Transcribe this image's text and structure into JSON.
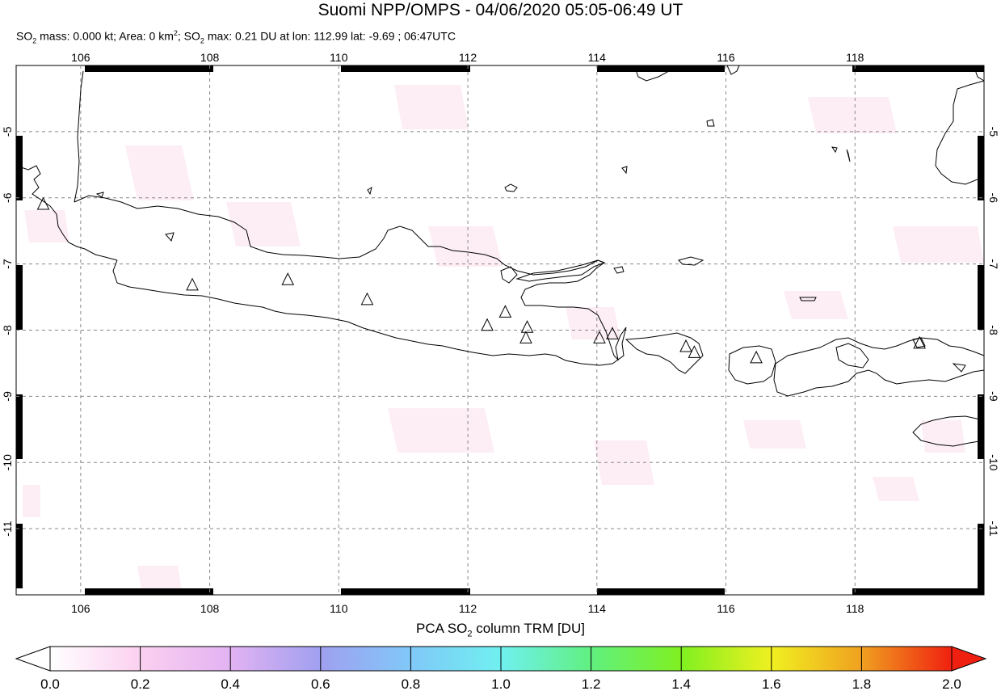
{
  "header": {
    "title": "Suomi NPP/OMPS - 04/06/2020 05:05-06:49 UT",
    "so2_mass_label": "SO",
    "so2_mass_text": " mass: 0.000 kt; Area: 0 km",
    "area_suffix": "; SO",
    "so2_max_text": " max: 0.21 DU at lon: 112.99 lat: -9.69 ; 06:47UTC",
    "sub2": "2",
    "sup2": "2"
  },
  "map": {
    "lon_labels": [
      "106",
      "108",
      "110",
      "112",
      "114",
      "116",
      "118"
    ],
    "lat_labels": [
      "-5",
      "-6",
      "-7",
      "-8",
      "-9",
      "-10",
      "-11"
    ],
    "lon_range": [
      105,
      120
    ],
    "lat_range": [
      -12,
      -4
    ],
    "grid": true,
    "volcano_icon": "triangle-icon",
    "volcanoes": [
      {
        "lon": 105.42,
        "lat": -6.1
      },
      {
        "lon": 107.73,
        "lat": -7.32
      },
      {
        "lon": 109.21,
        "lat": -7.24
      },
      {
        "lon": 110.44,
        "lat": -7.54
      },
      {
        "lon": 112.3,
        "lat": -7.93
      },
      {
        "lon": 112.58,
        "lat": -7.73
      },
      {
        "lon": 112.92,
        "lat": -7.96
      },
      {
        "lon": 112.9,
        "lat": -8.12
      },
      {
        "lon": 114.04,
        "lat": -8.12
      },
      {
        "lon": 114.24,
        "lat": -8.06
      },
      {
        "lon": 115.38,
        "lat": -8.25
      },
      {
        "lon": 115.51,
        "lat": -8.34
      },
      {
        "lon": 116.47,
        "lat": -8.42
      },
      {
        "lon": 119.0,
        "lat": -8.2
      }
    ]
  },
  "colorbar": {
    "label_pre": "PCA SO",
    "label_sub": "2",
    "label_post": " column TRM [DU]",
    "ticks": [
      "0.0",
      "0.2",
      "0.4",
      "0.6",
      "0.8",
      "1.0",
      "1.2",
      "1.4",
      "1.6",
      "1.8",
      "2.0"
    ],
    "colors": [
      "#ffffff",
      "#fbd0f0",
      "#e2b2f2",
      "#a0a0f0",
      "#80c8f8",
      "#70f0f0",
      "#60f080",
      "#80f020",
      "#f0f020",
      "#f0a020",
      "#f02010"
    ]
  }
}
